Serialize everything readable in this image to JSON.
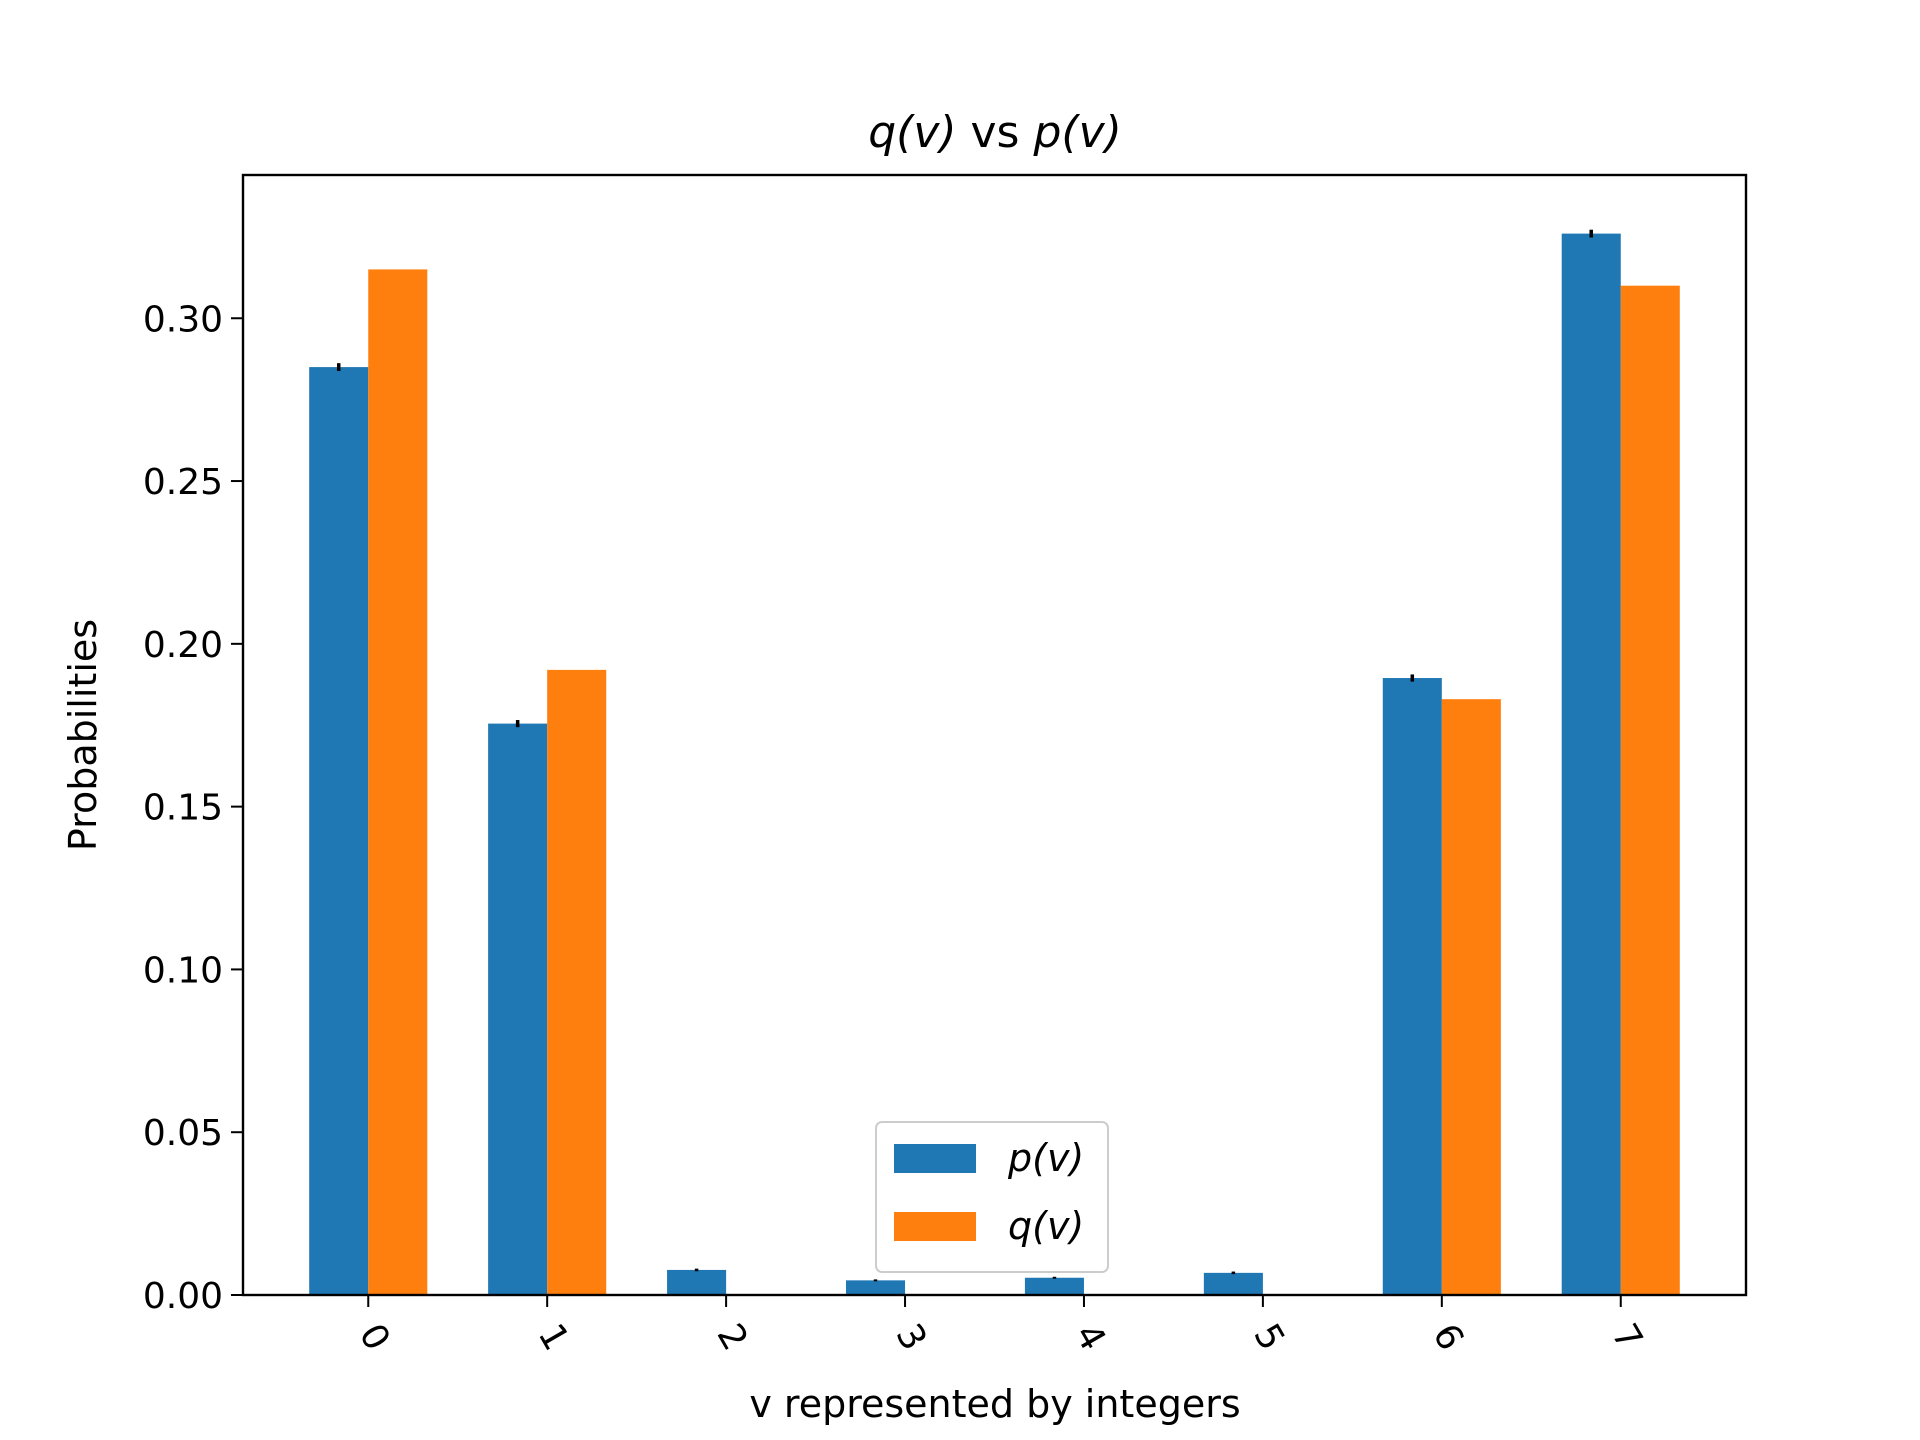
{
  "chart_data": {
    "type": "bar",
    "title": "q(v) vs p(v)",
    "xlabel": "v represented by integers",
    "ylabel": "Probabilities",
    "categories": [
      "0",
      "1",
      "2",
      "3",
      "4",
      "5",
      "6",
      "7"
    ],
    "series": [
      {
        "name": "p(v)",
        "color": "#1f77b4",
        "values": [
          0.285,
          0.1755,
          0.0077,
          0.0045,
          0.0053,
          0.0068,
          0.1895,
          0.326
        ],
        "errors": [
          0.0012,
          0.0011,
          0.0004,
          0.0003,
          0.0003,
          0.0004,
          0.0011,
          0.0012
        ]
      },
      {
        "name": "q(v)",
        "color": "#ff7f0e",
        "values": [
          0.315,
          0.192,
          0.0,
          0.0,
          0.0,
          0.0,
          0.183,
          0.31
        ]
      }
    ],
    "ylim": [
      0,
      0.344
    ],
    "yticks": [
      "0.00",
      "0.05",
      "0.10",
      "0.15",
      "0.20",
      "0.25",
      "0.30"
    ],
    "xtick_rotation": 60,
    "grid": false,
    "legend_position": "lower-center"
  }
}
